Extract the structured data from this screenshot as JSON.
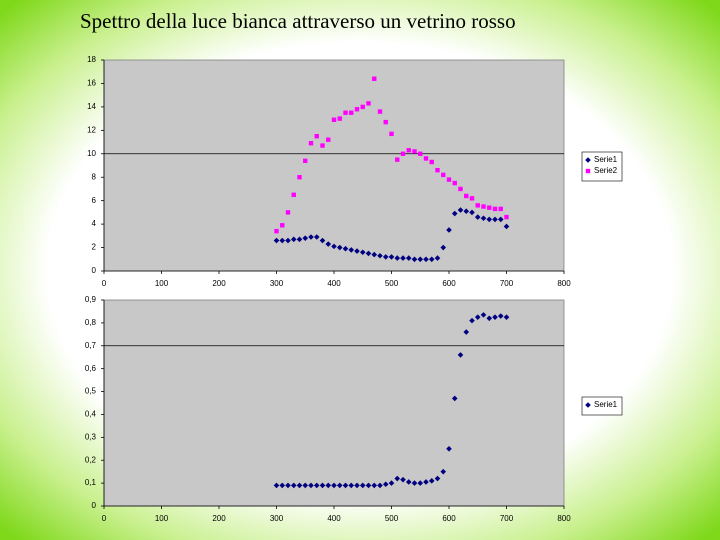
{
  "title": "Spettro della luce bianca attraverso un vetrino rosso",
  "chart_data": [
    {
      "type": "scatter",
      "x": [
        300,
        310,
        320,
        330,
        340,
        350,
        360,
        370,
        380,
        390,
        400,
        410,
        420,
        430,
        440,
        450,
        460,
        470,
        480,
        490,
        500,
        510,
        520,
        530,
        540,
        550,
        560,
        570,
        580,
        590,
        600,
        610,
        620,
        630,
        640,
        650,
        660,
        670,
        680,
        690,
        700
      ],
      "series": [
        {
          "name": "Serie1",
          "color": "#000080",
          "marker": "diamond",
          "values": [
            2.6,
            2.6,
            2.6,
            2.7,
            2.7,
            2.8,
            2.9,
            2.9,
            2.6,
            2.3,
            2.1,
            2.0,
            1.9,
            1.8,
            1.7,
            1.6,
            1.5,
            1.4,
            1.3,
            1.2,
            1.2,
            1.1,
            1.1,
            1.1,
            1.0,
            1.0,
            1.0,
            1.0,
            1.1,
            2.0,
            3.5,
            4.9,
            5.2,
            5.1,
            5.0,
            4.6,
            4.5,
            4.4,
            4.4,
            4.4,
            3.8
          ]
        },
        {
          "name": "Serie2",
          "color": "#ff00ff",
          "marker": "square",
          "values": [
            3.4,
            3.9,
            5.0,
            6.5,
            8.0,
            9.4,
            10.9,
            11.5,
            10.7,
            11.2,
            12.9,
            13.0,
            13.5,
            13.5,
            13.8,
            14.0,
            14.3,
            16.4,
            13.6,
            12.7,
            11.7,
            9.5,
            10.0,
            10.3,
            10.2,
            10.0,
            9.6,
            9.3,
            8.6,
            8.2,
            7.8,
            7.5,
            7.0,
            6.4,
            6.2,
            5.6,
            5.5,
            5.4,
            5.3,
            5.3,
            4.6
          ]
        }
      ],
      "xlim": [
        0,
        800
      ],
      "xticks": [
        0,
        100,
        200,
        300,
        400,
        500,
        600,
        700,
        800
      ],
      "ylim": [
        0,
        18
      ],
      "yticks": [
        0,
        2,
        4,
        6,
        8,
        10,
        12,
        14,
        16,
        18
      ],
      "grid_lines": [
        10
      ],
      "legend": "right"
    },
    {
      "type": "scatter",
      "x": [
        300,
        310,
        320,
        330,
        340,
        350,
        360,
        370,
        380,
        390,
        400,
        410,
        420,
        430,
        440,
        450,
        460,
        470,
        480,
        490,
        500,
        510,
        520,
        530,
        540,
        550,
        560,
        570,
        580,
        590,
        600,
        610,
        620,
        630,
        640,
        650,
        660,
        670,
        680,
        690,
        700
      ],
      "series": [
        {
          "name": "Serie1",
          "color": "#000080",
          "marker": "diamond",
          "values": [
            0.09,
            0.09,
            0.09,
            0.09,
            0.09,
            0.09,
            0.09,
            0.09,
            0.09,
            0.09,
            0.09,
            0.09,
            0.09,
            0.09,
            0.09,
            0.09,
            0.09,
            0.09,
            0.09,
            0.095,
            0.1,
            0.12,
            0.115,
            0.105,
            0.1,
            0.1,
            0.105,
            0.11,
            0.12,
            0.15,
            0.25,
            0.47,
            0.66,
            0.76,
            0.81,
            0.825,
            0.835,
            0.82,
            0.825,
            0.83,
            0.825
          ]
        }
      ],
      "xlim": [
        0,
        800
      ],
      "xticks": [
        0,
        100,
        200,
        300,
        400,
        500,
        600,
        700,
        800
      ],
      "ylim": [
        0,
        0.9
      ],
      "yticks": [
        0,
        {
          "value": 0.1,
          "label": "0,1"
        },
        {
          "value": 0.2,
          "label": "0,2"
        },
        {
          "value": 0.3,
          "label": "0,3"
        },
        {
          "value": 0.4,
          "label": "0,4"
        },
        {
          "value": 0.5,
          "label": "0,5"
        },
        {
          "value": 0.6,
          "label": "0,6"
        },
        {
          "value": 0.7,
          "label": "0,7"
        },
        {
          "value": 0.8,
          "label": "0,8"
        },
        {
          "value": 0.9,
          "label": "0,9"
        }
      ],
      "grid_lines": [
        0.7
      ],
      "legend": "right"
    }
  ]
}
